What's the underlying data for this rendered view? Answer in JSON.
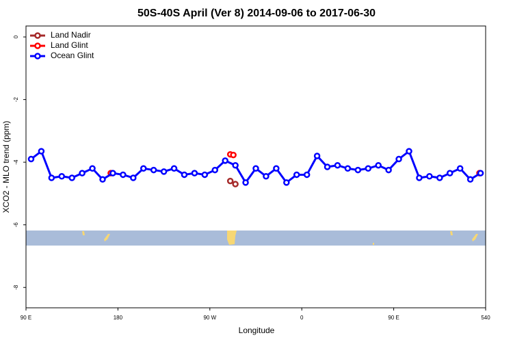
{
  "chart_data": {
    "type": "line",
    "title": "50S-40S April (Ver 8)   2014-09-06 to 2017-06-30",
    "xlabel": "Longitude",
    "ylabel": "XCO2 - MLO trend (ppm)",
    "xlim": [
      90,
      540
    ],
    "ylim": [
      -8.65,
      0.35
    ],
    "xticks": [
      {
        "value": 90,
        "label": "90 E"
      },
      180,
      {
        "value": 270,
        "label": "90 W"
      },
      {
        "value": 360,
        "label": "0"
      },
      {
        "value": 450,
        "label": "90 E"
      },
      540
    ],
    "yticks": [
      0,
      -2,
      -4,
      -6,
      -8
    ],
    "legend": "top-left",
    "series": [
      {
        "name": "Land Nadir",
        "color": "#a52a2a",
        "x": [
          290,
          295
        ],
        "values": [
          -4.6,
          -4.7
        ]
      },
      {
        "name": "Land Glint",
        "color": "#ff0000",
        "x": [
          173,
          290,
          293,
          534
        ],
        "values": [
          -4.35,
          -3.75,
          -3.77,
          -4.35
        ]
      },
      {
        "name": "Ocean Glint",
        "color": "#0000ff",
        "x": [
          95,
          105,
          115,
          125,
          135,
          145,
          155,
          165,
          175,
          185,
          195,
          205,
          215,
          225,
          235,
          245,
          255,
          265,
          275,
          285,
          295,
          305,
          315,
          325,
          335,
          345,
          355,
          365,
          375,
          385,
          395,
          405,
          415,
          425,
          435,
          445,
          455,
          465,
          475,
          485,
          495,
          505,
          515,
          525,
          535
        ],
        "values": [
          -3.9,
          -3.65,
          -4.5,
          -4.45,
          -4.5,
          -4.35,
          -4.2,
          -4.55,
          -4.35,
          -4.4,
          -4.5,
          -4.2,
          -4.25,
          -4.3,
          -4.2,
          -4.4,
          -4.35,
          -4.4,
          -4.25,
          -3.95,
          -4.1,
          -4.65,
          -4.2,
          -4.45,
          -4.2,
          -4.65,
          -4.4,
          -4.4,
          -3.8,
          -4.15,
          -4.1,
          -4.2,
          -4.25,
          -4.2,
          -4.1,
          -4.25,
          -3.9,
          -3.65,
          -4.5,
          -4.45,
          -4.5,
          -4.35,
          -4.2,
          -4.55,
          -4.35
        ]
      }
    ]
  }
}
